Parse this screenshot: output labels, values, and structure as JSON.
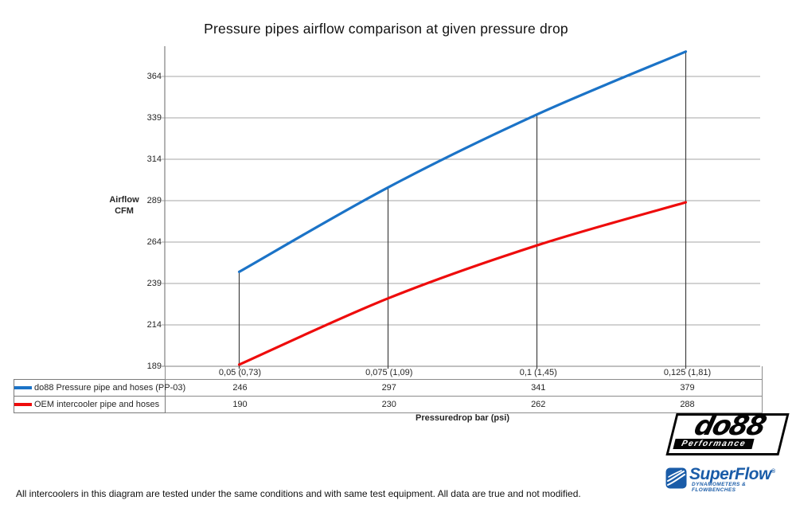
{
  "page": {
    "footer": "All intercoolers in this diagram are tested under the same conditions and with same test equipment. All data are true and not modified."
  },
  "chart_data": {
    "type": "line",
    "title": "Pressure pipes airflow comparison at given pressure drop",
    "xlabel": "Pressuredrop bar (psi)",
    "ylabel": "Airflow CFM",
    "ylabel_lines": [
      "Airflow",
      "CFM"
    ],
    "categories": [
      "0,05 (0,73)",
      "0,075 (1,09)",
      "0,1 (1,45)",
      "0,125 (1,81)"
    ],
    "series": [
      {
        "name": "do88 Pressure pipe and hoses (PP-03)",
        "color": "#1b73c7",
        "values": [
          246,
          297,
          341,
          379
        ]
      },
      {
        "name": "OEM intercooler pipe and hoses",
        "color": "#ee0c0c",
        "values": [
          190,
          230,
          262,
          288
        ]
      }
    ],
    "y_ticks": [
      364,
      339,
      314,
      289,
      264,
      239,
      214,
      189
    ],
    "ylim": [
      189,
      382
    ],
    "grid": true,
    "smoothed": true,
    "legend_position": "table-left",
    "colors": {
      "gridline": "#a6a6a6",
      "axis": "#808080",
      "dropline": "#3f3f3f"
    }
  },
  "logos": {
    "do88": {
      "name": "do88",
      "tagline": "Performance"
    },
    "superflow": {
      "name": "SuperFlow",
      "mark": "®",
      "tagline": "DYNAMOMETERS & FLOWBENCHES"
    }
  }
}
